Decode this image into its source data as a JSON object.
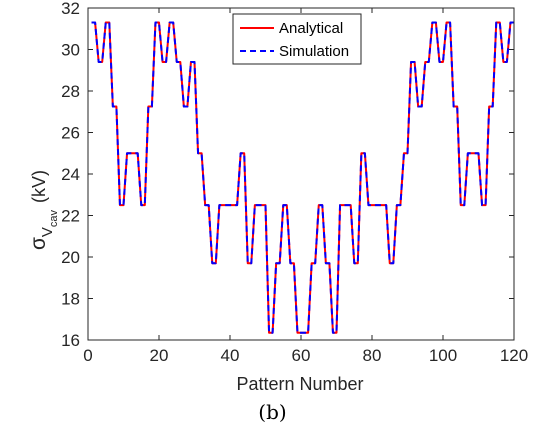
{
  "chart_data": {
    "type": "line",
    "xlabel": "Pattern Number",
    "ylabel": {
      "sym": "σ",
      "sub": "V",
      "subsub": "cav",
      "unit": "(kV)"
    },
    "xlim": [
      0,
      120
    ],
    "ylim": [
      16,
      32
    ],
    "xticks": [
      0,
      20,
      40,
      60,
      80,
      100,
      120
    ],
    "yticks": [
      16,
      18,
      20,
      22,
      24,
      26,
      28,
      30,
      32
    ],
    "grid": false,
    "legend_position": "top-right",
    "colors": {
      "analytical": "#ff0000",
      "simulation": "#0000ff"
    },
    "series": [
      {
        "name": "Analytical",
        "style": "solid",
        "x": [
          1,
          2,
          3,
          4,
          5,
          6,
          7,
          8,
          9,
          10,
          11,
          12,
          13,
          14,
          15,
          16,
          17,
          18,
          19,
          20,
          21,
          22,
          23,
          24,
          25,
          26,
          27,
          28,
          29,
          30,
          31,
          32,
          33,
          34,
          35,
          36,
          37,
          38,
          39,
          40,
          41,
          42,
          43,
          44,
          45,
          46,
          47,
          48,
          49,
          50,
          51,
          52,
          53,
          54,
          55,
          56,
          57,
          58,
          59,
          60,
          61,
          62,
          63,
          64,
          65,
          66,
          67,
          68,
          69,
          70,
          71,
          72,
          73,
          74,
          75,
          76,
          77,
          78,
          79,
          80,
          81,
          82,
          83,
          84,
          85,
          86,
          87,
          88,
          89,
          90,
          91,
          92,
          93,
          94,
          95,
          96,
          97,
          98,
          99,
          100,
          101,
          102,
          103,
          104,
          105,
          106,
          107,
          108,
          109,
          110,
          111,
          112,
          113,
          114,
          115,
          116,
          117,
          118,
          119,
          120
        ],
        "y": [
          31.3,
          31.3,
          29.4,
          29.4,
          31.3,
          31.3,
          27.25,
          27.25,
          22.5,
          22.5,
          25.0,
          25.0,
          25.0,
          25.0,
          22.5,
          22.5,
          27.25,
          27.25,
          31.3,
          31.3,
          29.4,
          29.4,
          31.3,
          31.3,
          29.4,
          29.4,
          27.25,
          27.25,
          29.4,
          29.4,
          25.0,
          25.0,
          22.5,
          22.5,
          19.7,
          19.7,
          22.5,
          22.5,
          22.5,
          22.5,
          22.5,
          22.5,
          25.0,
          25.0,
          19.7,
          19.7,
          22.5,
          22.5,
          22.5,
          22.5,
          16.35,
          16.35,
          19.7,
          19.7,
          22.5,
          22.5,
          19.7,
          19.7,
          16.35,
          16.35,
          16.35,
          16.35,
          19.7,
          19.7,
          22.5,
          22.5,
          19.7,
          19.7,
          16.35,
          16.35,
          22.5,
          22.5,
          22.5,
          22.5,
          19.7,
          19.7,
          25.0,
          25.0,
          22.5,
          22.5,
          22.5,
          22.5,
          22.5,
          22.5,
          19.7,
          19.7,
          22.5,
          22.5,
          25.0,
          25.0,
          29.4,
          29.4,
          27.25,
          27.25,
          29.4,
          29.4,
          31.3,
          31.3,
          29.4,
          29.4,
          31.3,
          31.3,
          27.25,
          27.25,
          22.5,
          22.5,
          25.0,
          25.0,
          25.0,
          25.0,
          22.5,
          22.5,
          27.25,
          27.25,
          31.3,
          31.3,
          29.4,
          29.4,
          31.3,
          31.3
        ]
      },
      {
        "name": "Simulation",
        "style": "dashed",
        "x": [
          1,
          2,
          3,
          4,
          5,
          6,
          7,
          8,
          9,
          10,
          11,
          12,
          13,
          14,
          15,
          16,
          17,
          18,
          19,
          20,
          21,
          22,
          23,
          24,
          25,
          26,
          27,
          28,
          29,
          30,
          31,
          32,
          33,
          34,
          35,
          36,
          37,
          38,
          39,
          40,
          41,
          42,
          43,
          44,
          45,
          46,
          47,
          48,
          49,
          50,
          51,
          52,
          53,
          54,
          55,
          56,
          57,
          58,
          59,
          60,
          61,
          62,
          63,
          64,
          65,
          66,
          67,
          68,
          69,
          70,
          71,
          72,
          73,
          74,
          75,
          76,
          77,
          78,
          79,
          80,
          81,
          82,
          83,
          84,
          85,
          86,
          87,
          88,
          89,
          90,
          91,
          92,
          93,
          94,
          95,
          96,
          97,
          98,
          99,
          100,
          101,
          102,
          103,
          104,
          105,
          106,
          107,
          108,
          109,
          110,
          111,
          112,
          113,
          114,
          115,
          116,
          117,
          118,
          119,
          120
        ],
        "y": [
          31.3,
          31.3,
          29.4,
          29.4,
          31.3,
          31.3,
          27.25,
          27.25,
          22.5,
          22.5,
          25.0,
          25.0,
          25.0,
          25.0,
          22.5,
          22.5,
          27.25,
          27.25,
          31.3,
          31.3,
          29.4,
          29.4,
          31.3,
          31.3,
          29.4,
          29.4,
          27.25,
          27.25,
          29.4,
          29.4,
          25.0,
          25.0,
          22.5,
          22.5,
          19.7,
          19.7,
          22.5,
          22.5,
          22.5,
          22.5,
          22.5,
          22.5,
          25.0,
          25.0,
          19.7,
          19.7,
          22.5,
          22.5,
          22.5,
          22.5,
          16.35,
          16.35,
          19.7,
          19.7,
          22.5,
          22.5,
          19.7,
          19.7,
          16.35,
          16.35,
          16.35,
          16.35,
          19.7,
          19.7,
          22.5,
          22.5,
          19.7,
          19.7,
          16.35,
          16.35,
          22.5,
          22.5,
          22.5,
          22.5,
          19.7,
          19.7,
          25.0,
          25.0,
          22.5,
          22.5,
          22.5,
          22.5,
          22.5,
          22.5,
          19.7,
          19.7,
          22.5,
          22.5,
          25.0,
          25.0,
          29.4,
          29.4,
          27.25,
          27.25,
          29.4,
          29.4,
          31.3,
          31.3,
          29.4,
          29.4,
          31.3,
          31.3,
          27.25,
          27.25,
          22.5,
          22.5,
          25.0,
          25.0,
          25.0,
          25.0,
          22.5,
          22.5,
          27.25,
          27.25,
          31.3,
          31.3,
          29.4,
          29.4,
          31.3,
          31.3
        ]
      }
    ]
  },
  "caption": "(b)"
}
